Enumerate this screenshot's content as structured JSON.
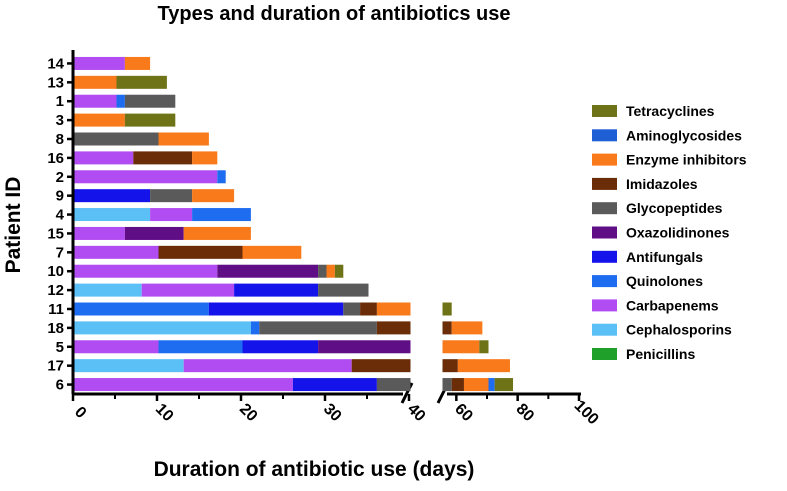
{
  "chart_data": {
    "type": "bar",
    "orientation": "horizontal",
    "stacked": true,
    "title": "Types and duration of antibiotics use",
    "xlabel": "Duration of antibiotic use (days)",
    "ylabel": "Patient ID",
    "axis_break": true,
    "x_segment_1": {
      "range": [
        0,
        40
      ],
      "ticks": [
        "0",
        "10",
        "20",
        "30",
        "40"
      ]
    },
    "x_segment_2": {
      "range": [
        55,
        100
      ],
      "ticks": [
        "60",
        "80",
        "100"
      ]
    },
    "legend_position": "right",
    "legend": [
      {
        "name": "Tetracyclines",
        "color": "#6f7318"
      },
      {
        "name": "Aminoglycosides",
        "color": "#1f5fd6"
      },
      {
        "name": "Enzyme inhibitors",
        "color": "#f97a1b"
      },
      {
        "name": "Imidazoles",
        "color": "#6a2d08"
      },
      {
        "name": "Glycopeptides",
        "color": "#5a5a5a"
      },
      {
        "name": "Oxazolidinones",
        "color": "#600e86"
      },
      {
        "name": "Antifungals",
        "color": "#1414ea"
      },
      {
        "name": "Quinolones",
        "color": "#1e6cf0"
      },
      {
        "name": "Carbapenems",
        "color": "#b14cf2"
      },
      {
        "name": "Cephalosporins",
        "color": "#5bc0f6"
      },
      {
        "name": "Penicillins",
        "color": "#1fa02a"
      }
    ],
    "patients": [
      {
        "id": "14",
        "segments": [
          [
            "Carbapenems",
            0,
            6
          ],
          [
            "Enzyme inhibitors",
            6,
            9
          ]
        ]
      },
      {
        "id": "13",
        "segments": [
          [
            "Enzyme inhibitors",
            0,
            5
          ],
          [
            "Tetracyclines",
            5,
            11
          ]
        ]
      },
      {
        "id": "1",
        "segments": [
          [
            "Carbapenems",
            0,
            5
          ],
          [
            "Quinolones",
            5,
            6
          ],
          [
            "Glycopeptides",
            6,
            12
          ]
        ]
      },
      {
        "id": "3",
        "segments": [
          [
            "Enzyme inhibitors",
            0,
            6
          ],
          [
            "Tetracyclines",
            6,
            12
          ]
        ]
      },
      {
        "id": "8",
        "segments": [
          [
            "Glycopeptides",
            0,
            10
          ],
          [
            "Enzyme inhibitors",
            10,
            16
          ]
        ]
      },
      {
        "id": "16",
        "segments": [
          [
            "Carbapenems",
            0,
            7
          ],
          [
            "Imidazoles",
            7,
            14
          ],
          [
            "Enzyme inhibitors",
            14,
            17
          ]
        ]
      },
      {
        "id": "2",
        "segments": [
          [
            "Carbapenems",
            0,
            17
          ],
          [
            "Quinolones",
            17,
            18
          ]
        ]
      },
      {
        "id": "9",
        "segments": [
          [
            "Antifungals",
            0,
            9
          ],
          [
            "Glycopeptides",
            9,
            14
          ],
          [
            "Enzyme inhibitors",
            14,
            19
          ]
        ]
      },
      {
        "id": "4",
        "segments": [
          [
            "Cephalosporins",
            0,
            9
          ],
          [
            "Carbapenems",
            9,
            14
          ],
          [
            "Quinolones",
            14,
            21
          ]
        ]
      },
      {
        "id": "15",
        "segments": [
          [
            "Carbapenems",
            0,
            6
          ],
          [
            "Oxazolidinones",
            6,
            13
          ],
          [
            "Enzyme inhibitors",
            13,
            21
          ]
        ]
      },
      {
        "id": "7",
        "segments": [
          [
            "Carbapenems",
            0,
            10
          ],
          [
            "Imidazoles",
            10,
            20
          ],
          [
            "Enzyme inhibitors",
            20,
            27
          ]
        ]
      },
      {
        "id": "10",
        "segments": [
          [
            "Carbapenems",
            0,
            17
          ],
          [
            "Oxazolidinones",
            17,
            29
          ],
          [
            "Glycopeptides",
            29,
            30
          ],
          [
            "Enzyme inhibitors",
            30,
            31
          ],
          [
            "Tetracyclines",
            31,
            32
          ]
        ]
      },
      {
        "id": "12",
        "segments": [
          [
            "Cephalosporins",
            0,
            8
          ],
          [
            "Carbapenems",
            8,
            19
          ],
          [
            "Antifungals",
            19,
            29
          ],
          [
            "Glycopeptides",
            29,
            35
          ]
        ]
      },
      {
        "id": "11",
        "segments": [
          [
            "Quinolones",
            0,
            16
          ],
          [
            "Antifungals",
            16,
            32
          ],
          [
            "Glycopeptides",
            32,
            34
          ],
          [
            "Imidazoles",
            34,
            36
          ],
          [
            "Enzyme inhibitors",
            36,
            40
          ],
          [
            "Tetracyclines",
            55,
            58
          ]
        ]
      },
      {
        "id": "18",
        "segments": [
          [
            "Cephalosporins",
            0,
            21
          ],
          [
            "Quinolones",
            21,
            22
          ],
          [
            "Glycopeptides",
            22,
            36
          ],
          [
            "Imidazoles",
            36,
            40
          ],
          [
            "Imidazoles",
            55,
            58
          ],
          [
            "Enzyme inhibitors",
            58,
            68
          ]
        ]
      },
      {
        "id": "5",
        "segments": [
          [
            "Carbapenems",
            0,
            10
          ],
          [
            "Quinolones",
            10,
            20
          ],
          [
            "Antifungals",
            20,
            29
          ],
          [
            "Oxazolidinones",
            29,
            40
          ],
          [
            "Enzyme inhibitors",
            55,
            67
          ],
          [
            "Tetracyclines",
            67,
            70
          ]
        ]
      },
      {
        "id": "17",
        "segments": [
          [
            "Cephalosporins",
            0,
            13
          ],
          [
            "Carbapenems",
            13,
            33
          ],
          [
            "Imidazoles",
            33,
            40
          ],
          [
            "Imidazoles",
            55,
            60
          ],
          [
            "Enzyme inhibitors",
            60,
            77
          ]
        ]
      },
      {
        "id": "6",
        "segments": [
          [
            "Carbapenems",
            0,
            26
          ],
          [
            "Antifungals",
            26,
            36
          ],
          [
            "Glycopeptides",
            36,
            40
          ],
          [
            "Glycopeptides",
            55,
            58
          ],
          [
            "Imidazoles",
            58,
            62
          ],
          [
            "Enzyme inhibitors",
            62,
            70
          ],
          [
            "Quinolones",
            70,
            72
          ],
          [
            "Tetracyclines",
            72,
            78
          ]
        ]
      }
    ]
  }
}
